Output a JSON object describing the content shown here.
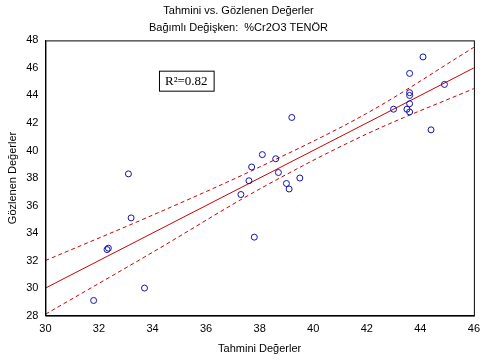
{
  "chart_data": {
    "type": "scatter",
    "title": "Tahmini vs. Gözlenen Değerler",
    "subtitle": "Bağımlı Değişken:  %Cr2O3 TENÖR",
    "x_label": "Tahmini Değerler",
    "y_label": "Gözlenen Değerler",
    "annotation": "R²=0.82",
    "xlim": [
      30,
      46
    ],
    "xticks": [
      30,
      32,
      34,
      36,
      38,
      40,
      42,
      44,
      46
    ],
    "ylim": [
      28,
      48
    ],
    "yticks": [
      28,
      30,
      32,
      34,
      36,
      38,
      40,
      42,
      44,
      46,
      48
    ],
    "grid": false,
    "series": [
      {
        "type": "scatter",
        "color": "#1010b0",
        "marker": "circle",
        "x": [
          31.8,
          32.3,
          32.35,
          33.1,
          33.2,
          33.7,
          37.3,
          37.6,
          37.7,
          37.8,
          38.1,
          38.6,
          38.7,
          39.0,
          39.1,
          39.2,
          39.5,
          43.0,
          43.5,
          43.6,
          43.6,
          43.6,
          43.6,
          43.6,
          44.1,
          44.4,
          44.9
        ],
        "values": [
          29.1,
          32.8,
          32.9,
          38.3,
          35.1,
          30.0,
          36.8,
          37.8,
          38.8,
          33.7,
          39.7,
          39.4,
          38.4,
          37.6,
          37.2,
          42.4,
          38.0,
          43.0,
          43.0,
          42.8,
          43.4,
          44.0,
          44.2,
          45.6,
          46.8,
          41.5,
          44.8
        ]
      },
      {
        "type": "line",
        "color": "#cc0000",
        "line_style": "solid",
        "x": [
          30,
          46
        ],
        "values": [
          30,
          46
        ]
      },
      {
        "type": "line",
        "color": "#cc0000",
        "line_style": "dashed",
        "x": [
          30,
          34,
          38,
          42,
          46
        ],
        "values": [
          32,
          35.3,
          38.8,
          42.7,
          47.5
        ]
      },
      {
        "type": "line",
        "color": "#cc0000",
        "line_style": "dashed",
        "x": [
          30,
          34,
          38,
          42,
          46
        ],
        "values": [
          28.1,
          32.6,
          37.2,
          41.2,
          44.5
        ]
      }
    ]
  }
}
